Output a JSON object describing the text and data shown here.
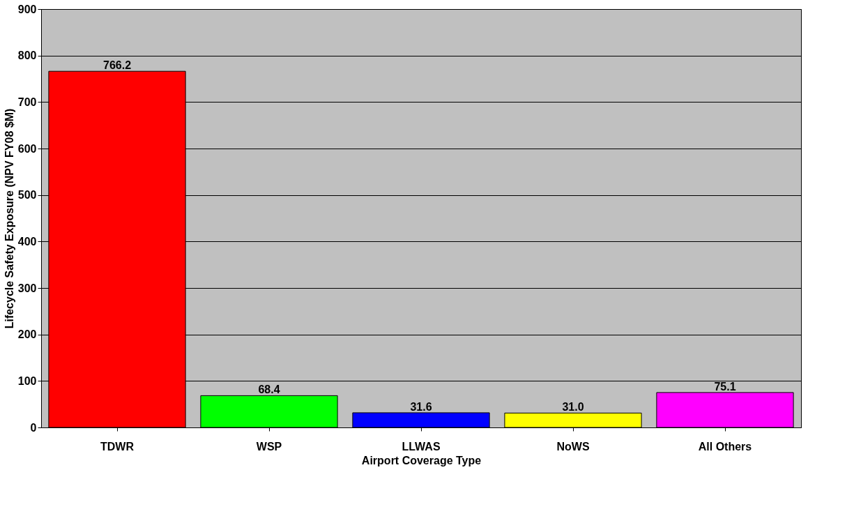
{
  "chart_data": {
    "type": "bar",
    "xlabel": "Airport Coverage Type",
    "ylabel": "Lifecycle Safety Exposure (NPV FY08 $M)",
    "categories": [
      "TDWR",
      "WSP",
      "LLWAS",
      "NoWS",
      "All Others"
    ],
    "values": [
      766.2,
      68.4,
      31.6,
      31.0,
      75.1
    ],
    "colors": [
      "#ff0000",
      "#00ff00",
      "#0000ff",
      "#ffff00",
      "#ff00ff"
    ],
    "value_labels": [
      "766.2",
      "68.4",
      "31.6",
      "31.0",
      "75.1"
    ],
    "ylim": [
      0,
      900
    ],
    "yticks": [
      0,
      100,
      200,
      300,
      400,
      500,
      600,
      700,
      800,
      900
    ],
    "grid": "y"
  }
}
